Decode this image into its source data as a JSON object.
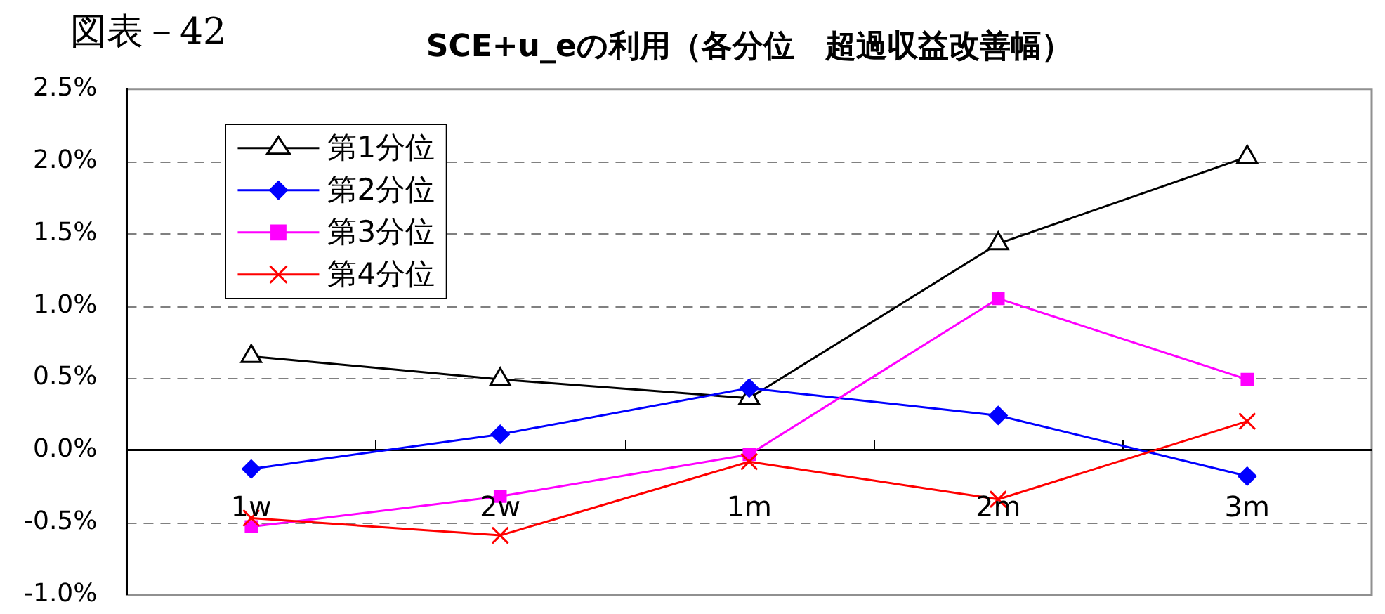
{
  "chart_data": {
    "type": "line",
    "title": "SCE+u_eの利用（各分位　超過収益改善幅）",
    "annotations": [
      "図表－42"
    ],
    "categories": [
      "1w",
      "2w",
      "1m",
      "2m",
      "3m"
    ],
    "series": [
      {
        "name": "第1分位",
        "color": "#000000",
        "marker": "triangle",
        "values": [
          0.65,
          0.49,
          0.36,
          1.43,
          2.03
        ]
      },
      {
        "name": "第2分位",
        "color": "#0000ff",
        "marker": "diamond",
        "values": [
          -0.13,
          0.11,
          0.43,
          0.24,
          -0.18
        ]
      },
      {
        "name": "第3分位",
        "color": "#ff00ff",
        "marker": "square",
        "values": [
          -0.53,
          -0.32,
          -0.03,
          1.05,
          0.49
        ]
      },
      {
        "name": "第4分位",
        "color": "#ff0000",
        "marker": "cross",
        "values": [
          -0.47,
          -0.59,
          -0.08,
          -0.34,
          0.2
        ]
      }
    ],
    "ylim": [
      -1,
      2.5
    ],
    "yticks": [
      {
        "value": -1,
        "label": "-1.0%"
      },
      {
        "value": -0.5,
        "label": "-0.5%"
      },
      {
        "value": 0,
        "label": "0.0%"
      },
      {
        "value": 0.5,
        "label": "0.5%"
      },
      {
        "value": 1,
        "label": "1.0%"
      },
      {
        "value": 1.5,
        "label": "1.5%"
      },
      {
        "value": 2,
        "label": "2.0%"
      },
      {
        "value": 2.5,
        "label": "2.5%"
      }
    ],
    "grid": "y",
    "legend": "top left"
  }
}
